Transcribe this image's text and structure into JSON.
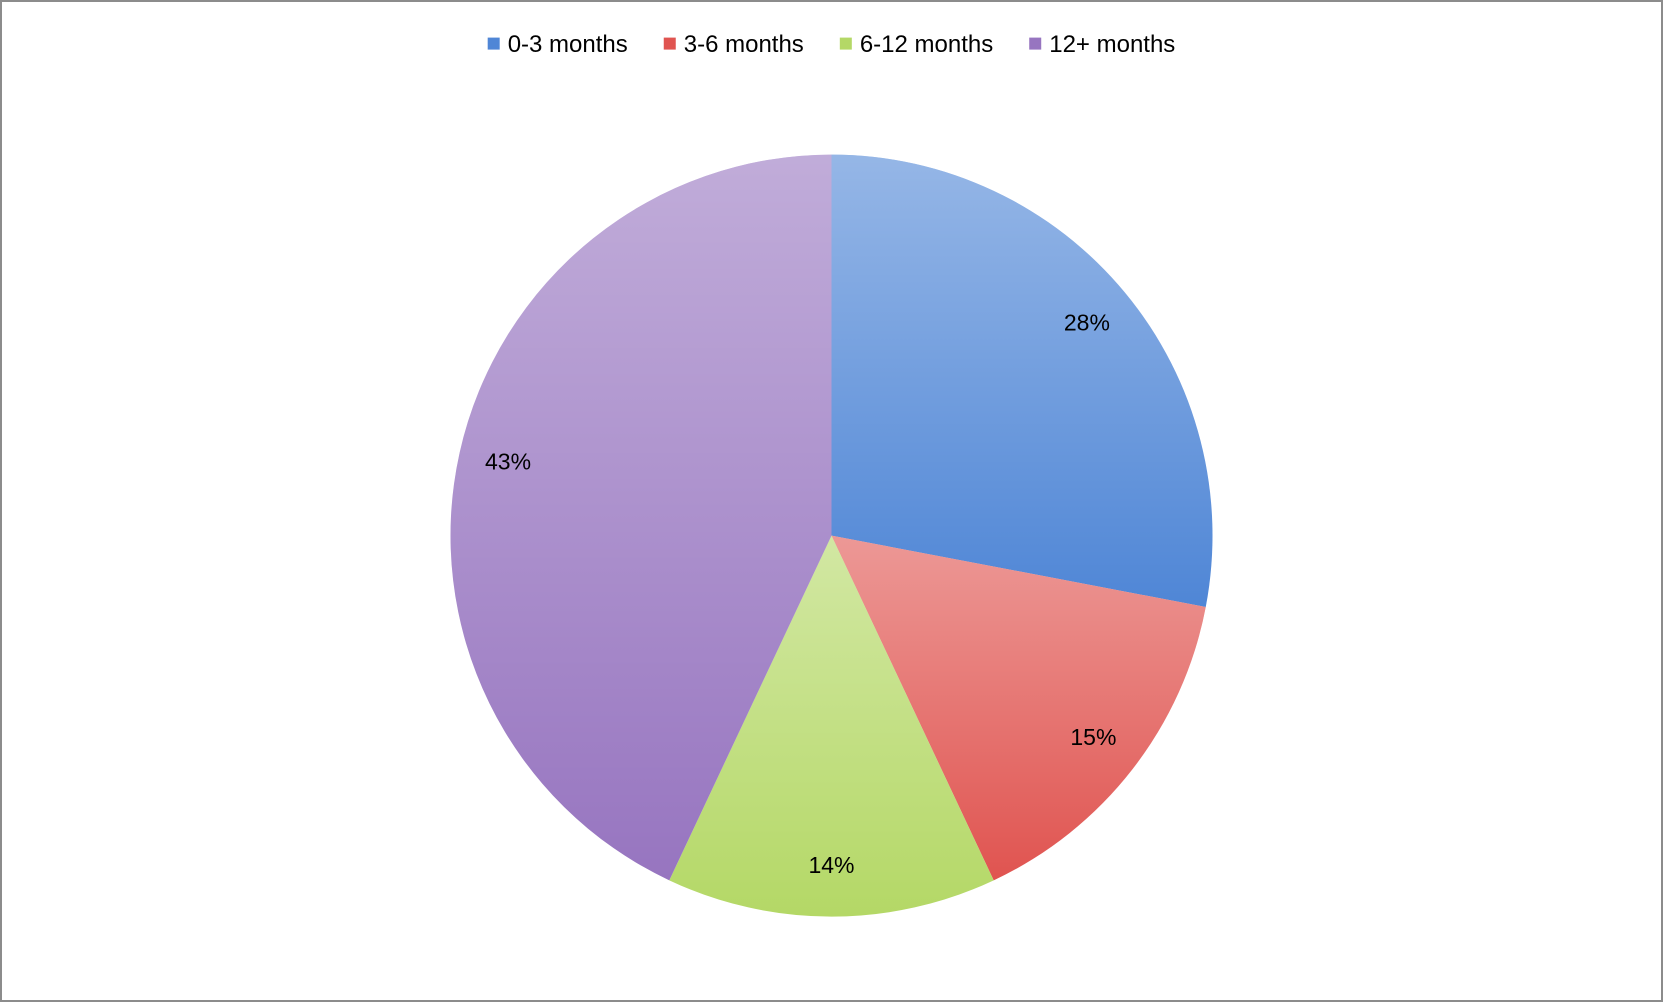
{
  "chart_data": {
    "type": "pie",
    "categories": [
      "0-3 months",
      "3-6 months",
      "6-12 months",
      "12+ months"
    ],
    "values": [
      28,
      15,
      14,
      43
    ],
    "value_labels": [
      "28%",
      "15%",
      "14%",
      "43%"
    ],
    "colors": [
      "#4f86d6",
      "#e05450",
      "#b4d866",
      "#9775c0"
    ],
    "legend": "top"
  }
}
